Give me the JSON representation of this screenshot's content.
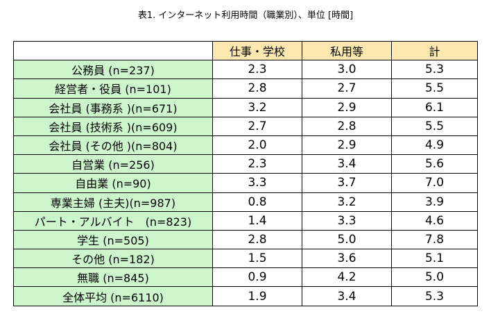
{
  "caption": "表1. インターネット利用時間（職業別）、単位 [時間]",
  "colors": {
    "header_bg": "#fde9b0",
    "label_bg": "#ccf5cc",
    "border": "#000000"
  },
  "table": {
    "columns": [
      "仕事・学校",
      "私用等",
      "計"
    ],
    "rows": [
      {
        "label": "公務員 (n=237)",
        "values": [
          "2.3",
          "3.0",
          "5.3"
        ]
      },
      {
        "label": "経営者・役員 (n=101)",
        "values": [
          "2.8",
          "2.7",
          "5.5"
        ]
      },
      {
        "label": "会社員 (事務系 )(n=671)",
        "values": [
          "3.2",
          "2.9",
          "6.1"
        ]
      },
      {
        "label": "会社員 (技術系 )(n=609)",
        "values": [
          "2.7",
          "2.8",
          "5.5"
        ]
      },
      {
        "label": "会社員 (その他 )(n=804)",
        "values": [
          "2.0",
          "2.9",
          "4.9"
        ]
      },
      {
        "label": "自営業 (n=256)",
        "values": [
          "2.3",
          "3.4",
          "5.6"
        ]
      },
      {
        "label": "自由業 (n=90)",
        "values": [
          "3.3",
          "3.7",
          "7.0"
        ]
      },
      {
        "label": "専業主婦 (主夫)(n=987)",
        "values": [
          "0.8",
          "3.2",
          "3.9"
        ]
      },
      {
        "label": "パート・アルバイト　(n=823)",
        "values": [
          "1.4",
          "3.3",
          "4.6"
        ]
      },
      {
        "label": "学生 (n=505)",
        "values": [
          "2.8",
          "5.0",
          "7.8"
        ]
      },
      {
        "label": "その他 (n=182)",
        "values": [
          "1.5",
          "3.6",
          "5.1"
        ]
      },
      {
        "label": "無職 (n=845)",
        "values": [
          "0.9",
          "4.2",
          "5.0"
        ]
      },
      {
        "label": "全体平均 (n=6110)",
        "values": [
          "1.9",
          "3.4",
          "5.3"
        ]
      }
    ]
  }
}
